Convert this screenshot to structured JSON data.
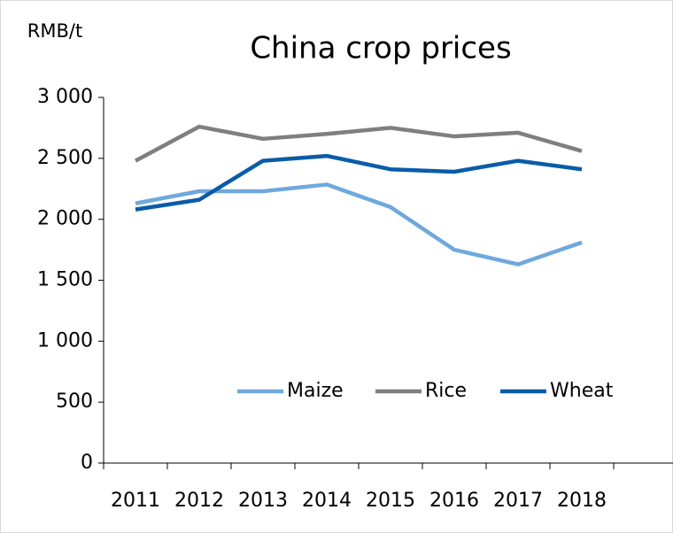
{
  "chart_data": {
    "type": "line",
    "title": "China crop prices",
    "y_label": "RMB/t",
    "categories": [
      "2011",
      "2012",
      "2013",
      "2014",
      "2015",
      "2016",
      "2017",
      "2018",
      null
    ],
    "series": [
      {
        "name": "Maize",
        "color": "#6fa8dc",
        "values": [
          2130,
          2230,
          2230,
          2285,
          2100,
          1750,
          1630,
          1810,
          null
        ]
      },
      {
        "name": "Rice",
        "color": "#7f7f7f",
        "values": [
          2480,
          2760,
          2660,
          2700,
          2750,
          2680,
          2710,
          2560,
          null
        ]
      },
      {
        "name": "Wheat",
        "color": "#0a5ca8",
        "values": [
          2080,
          2160,
          2480,
          2520,
          2410,
          2390,
          2480,
          2410,
          null
        ]
      }
    ],
    "ylim": [
      0,
      3000
    ],
    "yticks": [
      0,
      500,
      {
        "value": 1000,
        "label": "1 000"
      },
      {
        "value": 1500,
        "label": "1 500"
      },
      {
        "value": 2000,
        "label": "2 000"
      },
      {
        "value": 2500,
        "label": "2 500"
      },
      {
        "value": 3000,
        "label": "3 000"
      }
    ],
    "grid": false,
    "legend": "inside"
  }
}
